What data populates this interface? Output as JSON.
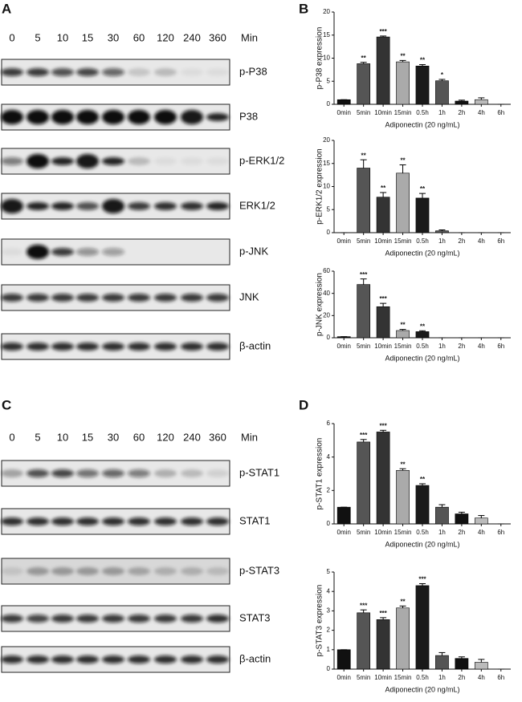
{
  "blots": [
    {
      "panel": "A",
      "lanes": [
        "0",
        "5",
        "10",
        "15",
        "30",
        "60",
        "120",
        "240",
        "360"
      ],
      "unit": "Min",
      "rows": [
        "p-P38",
        "P38",
        "p-ERK1/2",
        "ERK1/2",
        "p-JNK",
        "JNK",
        "β-actin"
      ]
    },
    {
      "panel": "C",
      "lanes": [
        "0",
        "5",
        "10",
        "15",
        "30",
        "60",
        "120",
        "240",
        "360"
      ],
      "unit": "Min",
      "rows": [
        "p-STAT1",
        "STAT1",
        "p-STAT3",
        "STAT3",
        "β-actin"
      ]
    }
  ],
  "chart_data": [
    {
      "type": "bar",
      "panel": "B",
      "ylabel": "p-P38 expression",
      "xlabel": "Adiponectin (20 ng/mL)",
      "categories": [
        "0min",
        "5min",
        "10min",
        "15min",
        "0.5h",
        "1h",
        "2h",
        "4h",
        "6h"
      ],
      "values": [
        1,
        8.8,
        14.6,
        9.2,
        8.3,
        5.1,
        0.7,
        1.0,
        0
      ],
      "errors": [
        0,
        0.3,
        0.2,
        0.3,
        0.3,
        0.3,
        0.2,
        0.4,
        0
      ],
      "annotations": [
        null,
        "**",
        "***",
        "**",
        "**",
        "*",
        null,
        null,
        null
      ],
      "colors": [
        "#111111",
        "#555555",
        "#333333",
        "#aaaaaa",
        "#1a1a1a",
        "#555555",
        "#111111",
        "#bbbbbb",
        "#111111"
      ],
      "ylim": [
        0,
        20
      ],
      "yticks": [
        0,
        5,
        10,
        15,
        20
      ]
    },
    {
      "type": "bar",
      "ylabel": "p-ERK1/2 expression",
      "xlabel": "Adiponectin (20 ng/mL)",
      "categories": [
        "0min",
        "5min",
        "10min",
        "15min",
        "0.5h",
        "1h",
        "2h",
        "4h",
        "6h"
      ],
      "values": [
        0,
        14,
        7.7,
        12.9,
        7.5,
        0.4,
        0,
        0,
        0
      ],
      "errors": [
        0,
        1.8,
        1.0,
        1.8,
        1.0,
        0.2,
        0,
        0,
        0
      ],
      "annotations": [
        null,
        "**",
        "**",
        "**",
        "**",
        null,
        null,
        null,
        null
      ],
      "colors": [
        "#111111",
        "#555555",
        "#333333",
        "#aaaaaa",
        "#1a1a1a",
        "#555555",
        "#111111",
        "#bbbbbb",
        "#111111"
      ],
      "ylim": [
        0,
        20
      ],
      "yticks": [
        0,
        5,
        10,
        15,
        20
      ]
    },
    {
      "type": "bar",
      "ylabel": "p-JNK expression",
      "xlabel": "Adiponectin (20 ng/mL)",
      "categories": [
        "0min",
        "5min",
        "10min",
        "15min",
        "0.5h",
        "1h",
        "2h",
        "4h",
        "6h"
      ],
      "values": [
        1,
        48,
        28,
        6.5,
        5.5,
        0,
        0,
        0,
        0
      ],
      "errors": [
        0,
        5,
        3,
        1,
        0.8,
        0,
        0,
        0,
        0
      ],
      "annotations": [
        null,
        "***",
        "***",
        "**",
        "**",
        null,
        null,
        null,
        null
      ],
      "colors": [
        "#111111",
        "#555555",
        "#333333",
        "#aaaaaa",
        "#1a1a1a",
        "#555555",
        "#111111",
        "#bbbbbb",
        "#111111"
      ],
      "ylim": [
        0,
        60
      ],
      "yticks": [
        0,
        20,
        40,
        60
      ]
    },
    {
      "type": "bar",
      "panel": "D",
      "ylabel": "p-STAT1 expression",
      "xlabel": "Adiponectin (20 ng/mL)",
      "categories": [
        "0min",
        "5min",
        "10min",
        "15min",
        "0.5h",
        "1h",
        "2h",
        "4h",
        "6h"
      ],
      "values": [
        1,
        4.9,
        5.5,
        3.2,
        2.3,
        1.0,
        0.6,
        0.35,
        0
      ],
      "errors": [
        0,
        0.15,
        0.1,
        0.1,
        0.1,
        0.15,
        0.1,
        0.15,
        0
      ],
      "annotations": [
        null,
        "***",
        "***",
        "**",
        "**",
        null,
        null,
        null,
        null
      ],
      "colors": [
        "#111111",
        "#555555",
        "#333333",
        "#aaaaaa",
        "#1a1a1a",
        "#555555",
        "#111111",
        "#bbbbbb",
        "#111111"
      ],
      "ylim": [
        0,
        6
      ],
      "yticks": [
        0,
        2,
        4,
        6
      ]
    },
    {
      "type": "bar",
      "ylabel": "p-STAT3 expression",
      "xlabel": "Adiponectin (20 ng/mL)",
      "categories": [
        "0min",
        "5min",
        "10min",
        "15min",
        "0.5h",
        "1h",
        "2h",
        "4h",
        "6h"
      ],
      "values": [
        1,
        2.9,
        2.55,
        3.15,
        4.3,
        0.7,
        0.55,
        0.35,
        0
      ],
      "errors": [
        0,
        0.15,
        0.1,
        0.1,
        0.1,
        0.15,
        0.08,
        0.15,
        0
      ],
      "annotations": [
        null,
        "***",
        "***",
        "**",
        "***",
        null,
        null,
        null,
        null
      ],
      "colors": [
        "#111111",
        "#555555",
        "#333333",
        "#aaaaaa",
        "#1a1a1a",
        "#555555",
        "#111111",
        "#bbbbbb",
        "#111111"
      ],
      "ylim": [
        0,
        5
      ],
      "yticks": [
        0,
        1,
        2,
        3,
        4,
        5
      ]
    }
  ]
}
